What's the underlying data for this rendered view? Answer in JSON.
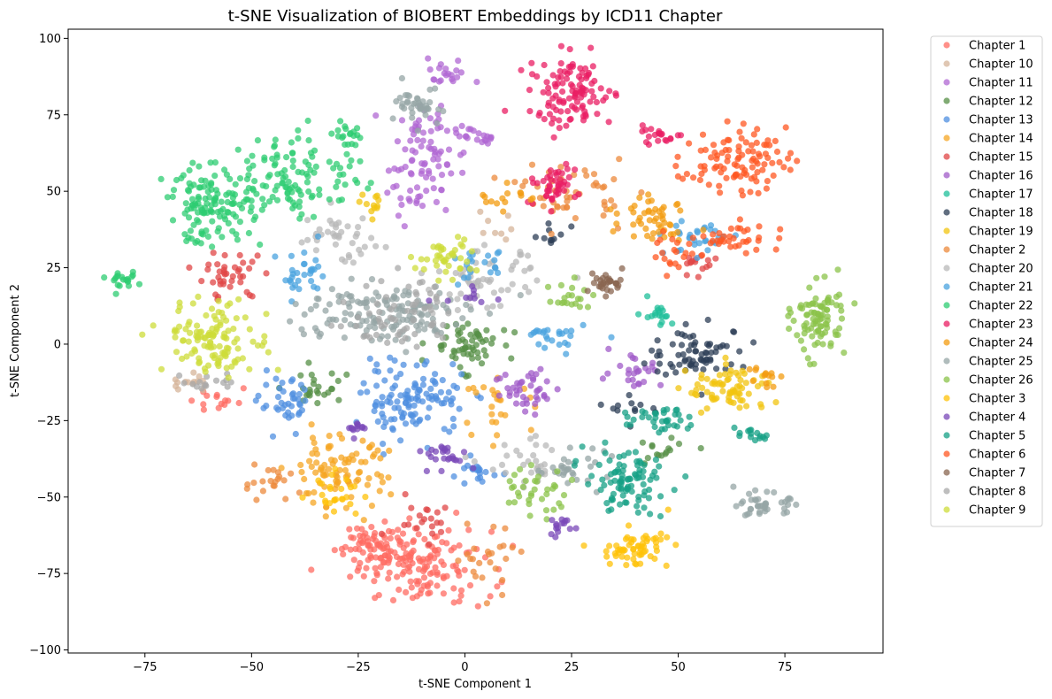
{
  "chart_data": {
    "type": "scatter",
    "title": "t-SNE Visualization of BIOBERT Embeddings by ICD11 Chapter",
    "xlabel": "t-SNE Component 1",
    "ylabel": "t-SNE Component 2",
    "xlim": [
      -93,
      98
    ],
    "ylim": [
      -101,
      103
    ],
    "xticks": [
      -75,
      -50,
      -25,
      0,
      25,
      50,
      75
    ],
    "yticks": [
      -100,
      -75,
      -50,
      -25,
      0,
      25,
      50,
      75,
      100
    ],
    "grid": false,
    "legend_position": "outside-right",
    "series": [
      {
        "name": "Chapter 1",
        "color": "#ff6b61",
        "clusters": [
          {
            "cx": -10,
            "cy": -73,
            "sx": 8,
            "sy": 6,
            "n": 140
          },
          {
            "cx": -20,
            "cy": -65,
            "sx": 5,
            "sy": 4,
            "n": 60
          },
          {
            "cx": -58,
            "cy": -18,
            "sx": 3,
            "sy": 3,
            "n": 14
          }
        ]
      },
      {
        "name": "Chapter 10",
        "color": "#d6b49a",
        "clusters": [
          {
            "cx": -65,
            "cy": -13,
            "sx": 2,
            "sy": 2,
            "n": 14
          },
          {
            "cx": 5,
            "cy": 40,
            "sx": 3,
            "sy": 3,
            "n": 8
          }
        ]
      },
      {
        "name": "Chapter 11",
        "color": "#b067d3",
        "clusters": [
          {
            "cx": -10,
            "cy": 60,
            "sx": 4,
            "sy": 9,
            "n": 90
          },
          {
            "cx": -5,
            "cy": 88,
            "sx": 3,
            "sy": 2,
            "n": 20
          },
          {
            "cx": 3,
            "cy": 68,
            "sx": 3,
            "sy": 2,
            "n": 20
          }
        ]
      },
      {
        "name": "Chapter 12",
        "color": "#568f46",
        "clusters": [
          {
            "cx": 0,
            "cy": 0,
            "sx": 4,
            "sy": 4,
            "n": 60
          },
          {
            "cx": -35,
            "cy": -15,
            "sx": 4,
            "sy": 3,
            "n": 25
          },
          {
            "cx": 45,
            "cy": -35,
            "sx": 4,
            "sy": 3,
            "n": 15
          }
        ]
      },
      {
        "name": "Chapter 13",
        "color": "#4f8fe0",
        "clusters": [
          {
            "cx": -12,
            "cy": -18,
            "sx": 6,
            "sy": 6,
            "n": 120
          },
          {
            "cx": -42,
            "cy": -20,
            "sx": 3,
            "sy": 4,
            "n": 40
          },
          {
            "cx": 3,
            "cy": -42,
            "sx": 3,
            "sy": 2,
            "n": 20
          }
        ]
      },
      {
        "name": "Chapter 14",
        "color": "#f5a623",
        "clusters": [
          {
            "cx": -30,
            "cy": -42,
            "sx": 6,
            "sy": 6,
            "n": 90
          },
          {
            "cx": 8,
            "cy": -20,
            "sx": 4,
            "sy": 4,
            "n": 25
          }
        ]
      },
      {
        "name": "Chapter 15",
        "color": "#e04545",
        "clusters": [
          {
            "cx": -55,
            "cy": 22,
            "sx": 4,
            "sy": 4,
            "n": 40
          },
          {
            "cx": -10,
            "cy": -55,
            "sx": 4,
            "sy": 4,
            "n": 20
          },
          {
            "cx": 55,
            "cy": 25,
            "sx": 3,
            "sy": 3,
            "n": 15
          }
        ]
      },
      {
        "name": "Chapter 16",
        "color": "#a05bc8",
        "clusters": [
          {
            "cx": 15,
            "cy": -15,
            "sx": 4,
            "sy": 4,
            "n": 40
          },
          {
            "cx": 40,
            "cy": -8,
            "sx": 3,
            "sy": 3,
            "n": 25
          }
        ]
      },
      {
        "name": "Chapter 17",
        "color": "#1fbf9a",
        "clusters": [
          {
            "cx": 45,
            "cy": 10,
            "sx": 2,
            "sy": 2,
            "n": 18
          }
        ]
      },
      {
        "name": "Chapter 18",
        "color": "#2c3e55",
        "clusters": [
          {
            "cx": 55,
            "cy": -3,
            "sx": 6,
            "sy": 4,
            "n": 70
          },
          {
            "cx": 20,
            "cy": 35,
            "sx": 2,
            "sy": 2,
            "n": 10
          },
          {
            "cx": 40,
            "cy": -20,
            "sx": 3,
            "sy": 3,
            "n": 12
          }
        ]
      },
      {
        "name": "Chapter 19",
        "color": "#f1c40f",
        "clusters": [
          {
            "cx": 62,
            "cy": -15,
            "sx": 5,
            "sy": 4,
            "n": 70
          },
          {
            "cx": -22,
            "cy": 45,
            "sx": 2,
            "sy": 2,
            "n": 12
          }
        ]
      },
      {
        "name": "Chapter 2",
        "color": "#ec8a3c",
        "clusters": [
          {
            "cx": 25,
            "cy": 50,
            "sx": 6,
            "sy": 5,
            "n": 50
          },
          {
            "cx": -45,
            "cy": -45,
            "sx": 4,
            "sy": 3,
            "n": 20
          },
          {
            "cx": 5,
            "cy": -70,
            "sx": 4,
            "sy": 6,
            "n": 25
          }
        ]
      },
      {
        "name": "Chapter 20",
        "color": "#b8b8b8",
        "clusters": [
          {
            "cx": 5,
            "cy": 20,
            "sx": 6,
            "sy": 5,
            "n": 60
          },
          {
            "cx": -30,
            "cy": 35,
            "sx": 5,
            "sy": 4,
            "n": 40
          },
          {
            "cx": 15,
            "cy": -40,
            "sx": 5,
            "sy": 4,
            "n": 30
          }
        ]
      },
      {
        "name": "Chapter 21",
        "color": "#4aa3df",
        "clusters": [
          {
            "cx": -38,
            "cy": 22,
            "sx": 3,
            "sy": 4,
            "n": 30
          },
          {
            "cx": 55,
            "cy": 35,
            "sx": 4,
            "sy": 3,
            "n": 30
          },
          {
            "cx": 20,
            "cy": 2,
            "sx": 4,
            "sy": 3,
            "n": 25
          },
          {
            "cx": 5,
            "cy": 25,
            "sx": 4,
            "sy": 3,
            "n": 20
          }
        ]
      },
      {
        "name": "Chapter 22",
        "color": "#2ecc71",
        "clusters": [
          {
            "cx": -60,
            "cy": 45,
            "sx": 5,
            "sy": 6,
            "n": 120
          },
          {
            "cx": -40,
            "cy": 55,
            "sx": 8,
            "sy": 7,
            "n": 120
          },
          {
            "cx": -80,
            "cy": 20,
            "sx": 1.5,
            "sy": 1.5,
            "n": 20
          },
          {
            "cx": -27,
            "cy": 68,
            "sx": 2,
            "sy": 2,
            "n": 20
          }
        ]
      },
      {
        "name": "Chapter 23",
        "color": "#e91e63",
        "clusters": [
          {
            "cx": 25,
            "cy": 82,
            "sx": 5,
            "sy": 6,
            "n": 110
          },
          {
            "cx": 20,
            "cy": 52,
            "sx": 3,
            "sy": 3,
            "n": 45
          },
          {
            "cx": 45,
            "cy": 68,
            "sx": 3,
            "sy": 1.5,
            "n": 20
          }
        ]
      },
      {
        "name": "Chapter 24",
        "color": "#f39c12",
        "clusters": [
          {
            "cx": 45,
            "cy": 42,
            "sx": 4,
            "sy": 4,
            "n": 50
          },
          {
            "cx": 70,
            "cy": -10,
            "sx": 2,
            "sy": 2,
            "n": 14
          },
          {
            "cx": 8,
            "cy": 48,
            "sx": 3,
            "sy": 3,
            "n": 15
          }
        ]
      },
      {
        "name": "Chapter 25",
        "color": "#95a5a6",
        "clusters": [
          {
            "cx": -20,
            "cy": 10,
            "sx": 10,
            "sy": 5,
            "n": 150
          },
          {
            "cx": -10,
            "cy": 78,
            "sx": 3,
            "sy": 3,
            "n": 40
          },
          {
            "cx": 70,
            "cy": -53,
            "sx": 3,
            "sy": 2,
            "n": 40
          },
          {
            "cx": 25,
            "cy": -40,
            "sx": 4,
            "sy": 3,
            "n": 30
          }
        ]
      },
      {
        "name": "Chapter 26",
        "color": "#8bc34a",
        "clusters": [
          {
            "cx": 83,
            "cy": 8,
            "sx": 3,
            "sy": 6,
            "n": 90
          },
          {
            "cx": 15,
            "cy": -48,
            "sx": 5,
            "sy": 4,
            "n": 35
          },
          {
            "cx": 25,
            "cy": 15,
            "sx": 3,
            "sy": 3,
            "n": 20
          }
        ]
      },
      {
        "name": "Chapter 3",
        "color": "#ffc107",
        "clusters": [
          {
            "cx": 40,
            "cy": -67,
            "sx": 4,
            "sy": 3,
            "n": 60
          },
          {
            "cx": -30,
            "cy": -48,
            "sx": 3,
            "sy": 3,
            "n": 25
          }
        ]
      },
      {
        "name": "Chapter 4",
        "color": "#7a48b8",
        "clusters": [
          {
            "cx": -5,
            "cy": -36,
            "sx": 3,
            "sy": 2,
            "n": 25
          },
          {
            "cx": -25,
            "cy": -28,
            "sx": 2,
            "sy": 1.5,
            "n": 12
          },
          {
            "cx": 22,
            "cy": -60,
            "sx": 2,
            "sy": 2,
            "n": 15
          },
          {
            "cx": 0,
            "cy": 15,
            "sx": 3,
            "sy": 2,
            "n": 10
          }
        ]
      },
      {
        "name": "Chapter 5",
        "color": "#16a085",
        "clusters": [
          {
            "cx": 38,
            "cy": -45,
            "sx": 5,
            "sy": 5,
            "n": 90
          },
          {
            "cx": 45,
            "cy": -25,
            "sx": 4,
            "sy": 2,
            "n": 35
          },
          {
            "cx": 68,
            "cy": -29,
            "sx": 2,
            "sy": 1.5,
            "n": 15
          }
        ]
      },
      {
        "name": "Chapter 6",
        "color": "#ff5722",
        "clusters": [
          {
            "cx": 63,
            "cy": 60,
            "sx": 6,
            "sy": 5,
            "n": 100
          },
          {
            "cx": 65,
            "cy": 35,
            "sx": 5,
            "sy": 3,
            "n": 35
          },
          {
            "cx": 50,
            "cy": 30,
            "sx": 3,
            "sy": 3,
            "n": 20
          }
        ]
      },
      {
        "name": "Chapter 7",
        "color": "#8a6650",
        "clusters": [
          {
            "cx": 33,
            "cy": 20,
            "sx": 2,
            "sy": 2,
            "n": 30
          }
        ]
      },
      {
        "name": "Chapter 8",
        "color": "#a8a8a8",
        "clusters": [
          {
            "cx": -15,
            "cy": 10,
            "sx": 6,
            "sy": 6,
            "n": 60
          },
          {
            "cx": -60,
            "cy": -12,
            "sx": 3,
            "sy": 2,
            "n": 15
          }
        ]
      },
      {
        "name": "Chapter 9",
        "color": "#cddc39",
        "clusters": [
          {
            "cx": -58,
            "cy": 2,
            "sx": 6,
            "sy": 6,
            "n": 120
          },
          {
            "cx": -5,
            "cy": 28,
            "sx": 4,
            "sy": 3,
            "n": 40
          }
        ]
      }
    ]
  }
}
